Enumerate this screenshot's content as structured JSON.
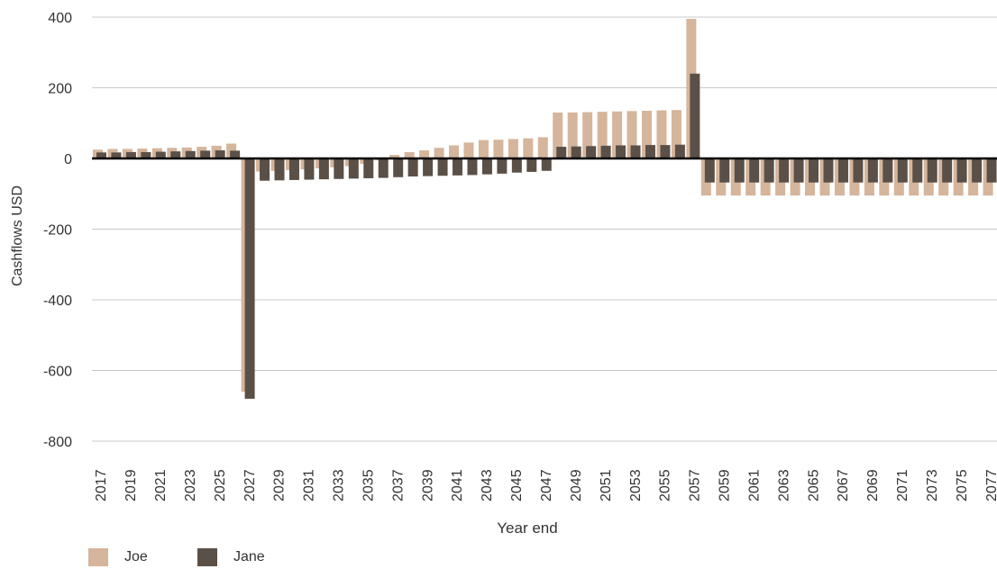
{
  "chart_data": {
    "type": "bar",
    "xlabel": "Year end",
    "ylabel": "Cashflows USD",
    "ylim": [
      -800,
      400
    ],
    "yticks": [
      400,
      200,
      0,
      -200,
      -400,
      -600,
      -800
    ],
    "grid": true,
    "legend_position": "bottom-left",
    "categories": [
      "2017",
      "2018",
      "2019",
      "2020",
      "2021",
      "2022",
      "2023",
      "2024",
      "2025",
      "2026",
      "2027",
      "2028",
      "2029",
      "2030",
      "2031",
      "2032",
      "2033",
      "2034",
      "2035",
      "2036",
      "2037",
      "2038",
      "2039",
      "2040",
      "2041",
      "2042",
      "2043",
      "2044",
      "2045",
      "2046",
      "2047",
      "2048",
      "2049",
      "2050",
      "2051",
      "2052",
      "2053",
      "2054",
      "2055",
      "2056",
      "2057",
      "2058",
      "2059",
      "2060",
      "2061",
      "2062",
      "2063",
      "2064",
      "2065",
      "2066",
      "2067",
      "2068",
      "2069",
      "2070",
      "2071",
      "2072",
      "2073",
      "2074",
      "2075",
      "2076",
      "2077"
    ],
    "xtick_labels": [
      "2017",
      "2019",
      "2021",
      "2023",
      "2025",
      "2027",
      "2029",
      "2031",
      "2033",
      "2035",
      "2037",
      "2039",
      "2041",
      "2043",
      "2045",
      "2047",
      "2049",
      "2051",
      "2053",
      "2055",
      "2057",
      "2059",
      "2061",
      "2063",
      "2065",
      "2067",
      "2069",
      "2071",
      "2073",
      "2075",
      "2077"
    ],
    "series": [
      {
        "name": "Joe",
        "color": "#d5b59b",
        "values": [
          25,
          27,
          27,
          28,
          29,
          30,
          31,
          33,
          36,
          42,
          -660,
          -37,
          -35,
          -33,
          -31,
          -28,
          -25,
          -22,
          -15,
          -5,
          10,
          18,
          23,
          30,
          37,
          45,
          52,
          53,
          55,
          57,
          60,
          130,
          130,
          131,
          132,
          133,
          134,
          135,
          136,
          137,
          395,
          -105,
          -105,
          -105,
          -105,
          -105,
          -105,
          -105,
          -105,
          -105,
          -105,
          -105,
          -105,
          -105,
          -105,
          -105,
          -105,
          -105,
          -105,
          -105,
          -105
        ]
      },
      {
        "name": "Jane",
        "color": "#5a5048",
        "values": [
          17,
          17,
          18,
          18,
          19,
          20,
          21,
          22,
          23,
          22,
          -680,
          -63,
          -62,
          -61,
          -60,
          -59,
          -58,
          -57,
          -56,
          -55,
          -53,
          -51,
          -50,
          -49,
          -48,
          -47,
          -45,
          -43,
          -40,
          -38,
          -35,
          33,
          34,
          35,
          36,
          37,
          37,
          38,
          38,
          39,
          240,
          -68,
          -68,
          -68,
          -68,
          -68,
          -68,
          -68,
          -68,
          -68,
          -68,
          -68,
          -68,
          -68,
          -68,
          -68,
          -68,
          -68,
          -68,
          -68,
          -68
        ]
      }
    ]
  }
}
